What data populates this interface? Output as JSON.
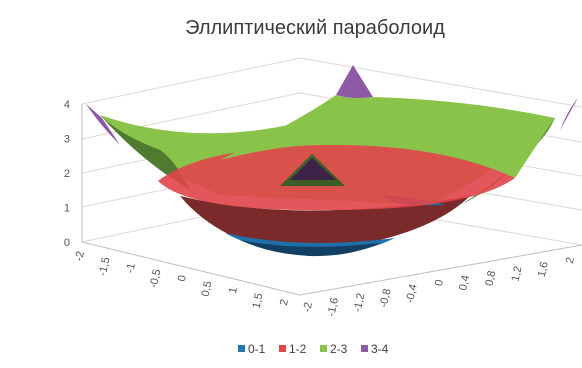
{
  "chart_data": {
    "type": "surface",
    "title": "Эллиптический параболоид",
    "zlim": [
      0,
      4
    ],
    "z_ticks": [
      "0",
      "1",
      "2",
      "3",
      "4"
    ],
    "x_ticks": [
      "-2",
      "-1,5",
      "-1",
      "-0,5",
      "0",
      "0,5",
      "1",
      "1,5",
      "2"
    ],
    "y_ticks": [
      "-2",
      "-1,6",
      "-1,2",
      "-0,8",
      "-0,4",
      "0",
      "0,4",
      "0,8",
      "1,2",
      "1,6",
      "2"
    ],
    "series": [
      {
        "name": "0-1",
        "range": [
          0,
          1
        ],
        "color": "#1f77b4"
      },
      {
        "name": "1-2",
        "range": [
          1,
          2
        ],
        "color": "#e0454a"
      },
      {
        "name": "2-3",
        "range": [
          2,
          3
        ],
        "color": "#8ac34a"
      },
      {
        "name": "3-4",
        "range": [
          3,
          4
        ],
        "color": "#8e5aa6"
      }
    ],
    "grid": true,
    "legend_position": "bottom"
  }
}
